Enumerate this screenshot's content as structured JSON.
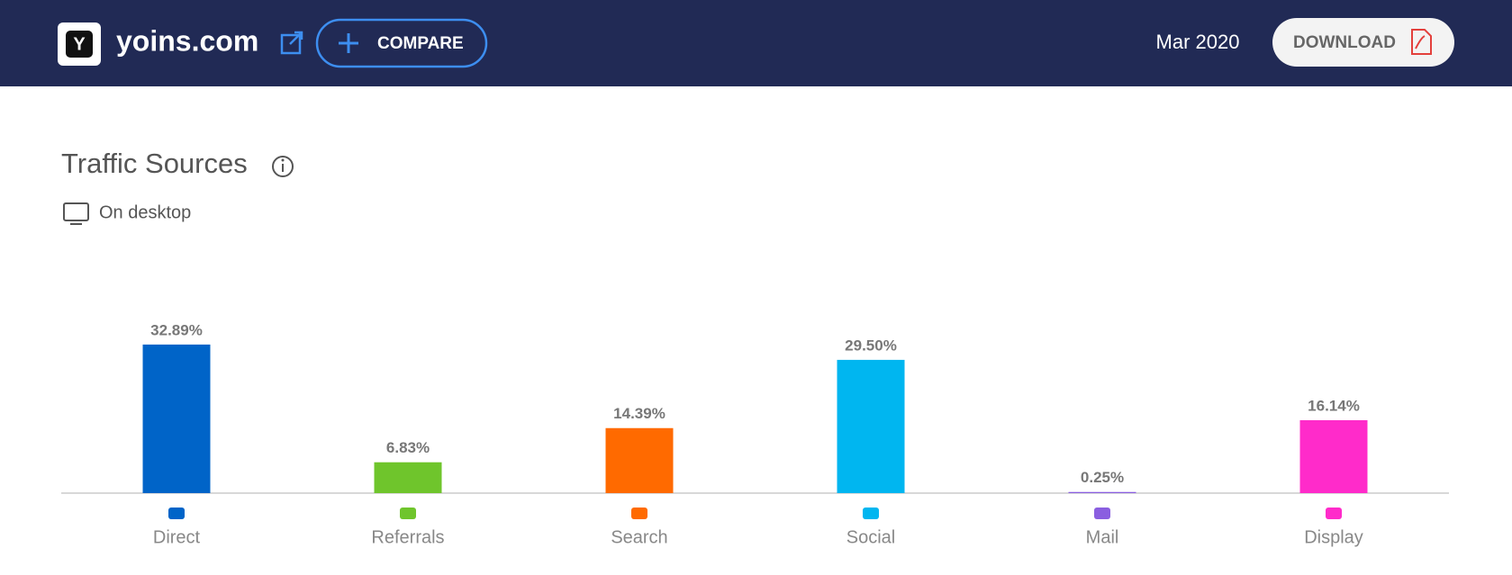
{
  "header": {
    "site": "yoins.com",
    "logo_letter": "Y",
    "compare_button": "COMPARE",
    "date": "Mar 2020",
    "download_button": "DOWNLOAD"
  },
  "chart_data": {
    "type": "bar",
    "title": "Traffic Sources",
    "subtitle": "On desktop",
    "categories": [
      "Direct",
      "Referrals",
      "Search",
      "Social",
      "Mail",
      "Display"
    ],
    "values": [
      32.89,
      6.83,
      14.39,
      29.5,
      0.25,
      16.14
    ],
    "value_labels": [
      "32.89%",
      "6.83%",
      "14.39%",
      "29.50%",
      "0.25%",
      "16.14%"
    ],
    "colors": [
      "#0064c8",
      "#6fc52c",
      "#ff6a00",
      "#00b6f0",
      "#8a5ee0",
      "#ff2bca"
    ]
  }
}
